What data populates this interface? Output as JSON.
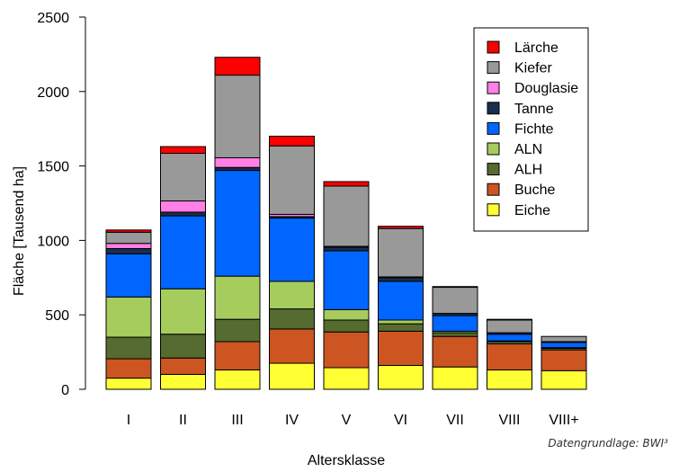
{
  "chart_data": {
    "type": "bar",
    "stacked": true,
    "xlabel": "Altersklasse",
    "ylabel": "Fläche [Tausend ha]",
    "ylim": [
      0,
      2500
    ],
    "yticks": [
      0,
      500,
      1000,
      1500,
      2000,
      2500
    ],
    "categories": [
      "I",
      "II",
      "III",
      "IV",
      "V",
      "VI",
      "VII",
      "VIII",
      "VIII+"
    ],
    "legend_position": "top-right",
    "series": [
      {
        "name": "Eiche",
        "color": "#ffff33",
        "values": [
          75,
          100,
          130,
          175,
          145,
          160,
          150,
          130,
          125
        ]
      },
      {
        "name": "Buche",
        "color": "#cc5522",
        "values": [
          130,
          110,
          190,
          230,
          240,
          230,
          205,
          175,
          140
        ]
      },
      {
        "name": "ALH",
        "color": "#556b2f",
        "values": [
          145,
          160,
          150,
          135,
          80,
          50,
          25,
          15,
          10
        ]
      },
      {
        "name": "ALN",
        "color": "#a6cc5e",
        "values": [
          270,
          305,
          290,
          185,
          70,
          25,
          10,
          5,
          5
        ]
      },
      {
        "name": "Fichte",
        "color": "#0066ff",
        "values": [
          290,
          490,
          710,
          425,
          395,
          260,
          105,
          45,
          35
        ]
      },
      {
        "name": "Tanne",
        "color": "#1a2e4d",
        "values": [
          35,
          25,
          20,
          10,
          25,
          25,
          15,
          10,
          5
        ]
      },
      {
        "name": "Douglasie",
        "color": "#ff7fe6",
        "values": [
          35,
          75,
          65,
          15,
          5,
          5,
          0,
          0,
          0
        ]
      },
      {
        "name": "Kiefer",
        "color": "#999999",
        "values": [
          75,
          320,
          555,
          460,
          405,
          325,
          175,
          85,
          35
        ]
      },
      {
        "name": "Lärche",
        "color": "#ff0000",
        "values": [
          15,
          45,
          120,
          65,
          30,
          15,
          5,
          5,
          0
        ]
      }
    ],
    "annotations": [
      "Datengrundlage: BWI³"
    ]
  }
}
